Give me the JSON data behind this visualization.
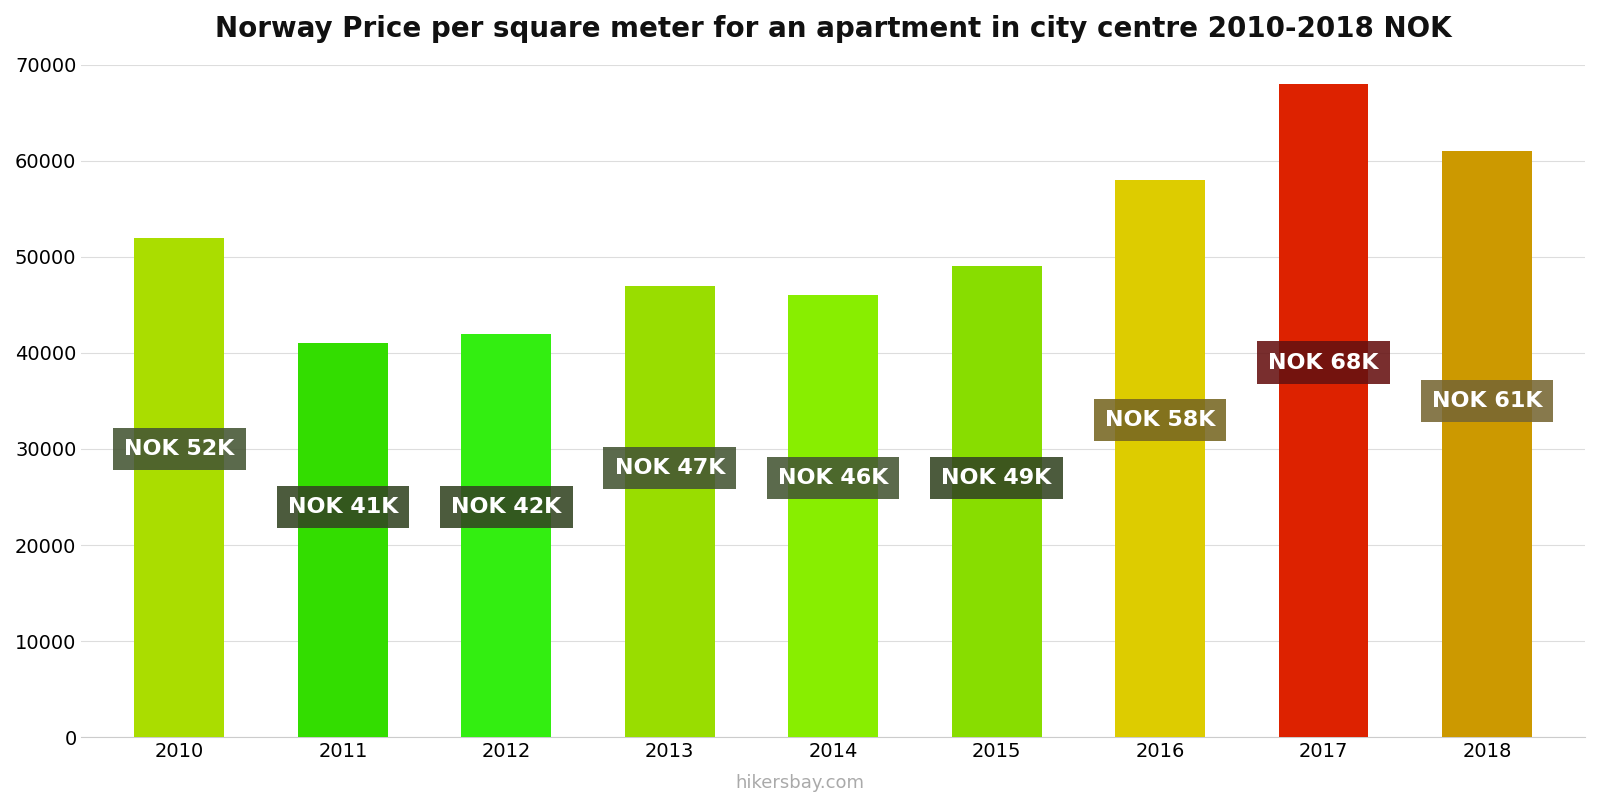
{
  "title": "Norway Price per square meter for an apartment in city centre 2010-2018 NOK",
  "years": [
    2010,
    2011,
    2012,
    2013,
    2014,
    2015,
    2016,
    2017,
    2018
  ],
  "values": [
    52000,
    41000,
    42000,
    47000,
    46000,
    49000,
    58000,
    68000,
    61000
  ],
  "labels": [
    "NOK 52K",
    "NOK 41K",
    "NOK 42K",
    "NOK 47K",
    "NOK 46K",
    "NOK 49K",
    "NOK 58K",
    "NOK 68K",
    "NOK 61K"
  ],
  "bar_colors": [
    "#aadd00",
    "#33dd00",
    "#33ee11",
    "#99dd00",
    "#88ee00",
    "#88dd00",
    "#ddcc00",
    "#dd2200",
    "#cc9900"
  ],
  "label_box_colors": [
    "#445533",
    "#334422",
    "#334422",
    "#445533",
    "#445533",
    "#334422",
    "#776622",
    "#661111",
    "#776633"
  ],
  "label_y_positions": [
    30000,
    24000,
    24000,
    28000,
    27000,
    27000,
    33000,
    39000,
    35000
  ],
  "ylim": [
    0,
    70000
  ],
  "yticks": [
    0,
    10000,
    20000,
    30000,
    40000,
    50000,
    60000,
    70000
  ],
  "watermark": "hikersbay.com",
  "title_fontsize": 20,
  "tick_fontsize": 14,
  "label_fontsize": 16,
  "bar_width": 0.55
}
